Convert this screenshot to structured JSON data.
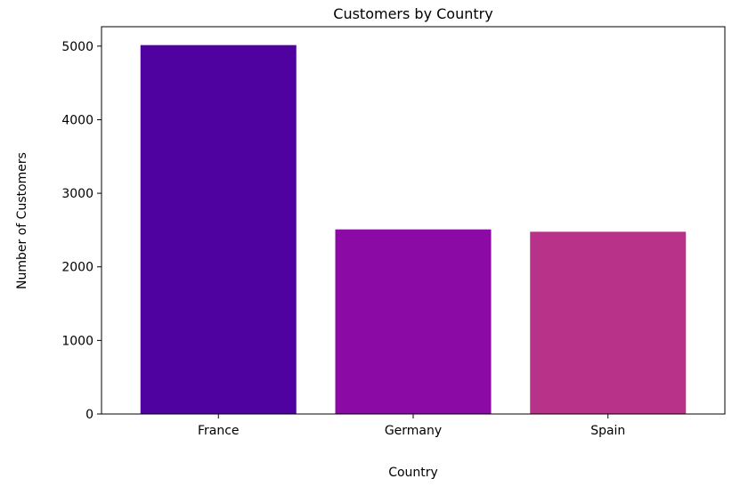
{
  "chart_data": {
    "type": "bar",
    "title": "Customers by Country",
    "xlabel": "Country",
    "ylabel": "Number of Customers",
    "categories": [
      "France",
      "Germany",
      "Spain"
    ],
    "values": [
      5014,
      2509,
      2477
    ],
    "colors": [
      "#4f02a0",
      "#8b0aa5",
      "#b83289"
    ],
    "ylim": [
      0,
      5264
    ],
    "yticks": [
      0,
      1000,
      2000,
      3000,
      4000,
      5000
    ],
    "grid": false
  }
}
